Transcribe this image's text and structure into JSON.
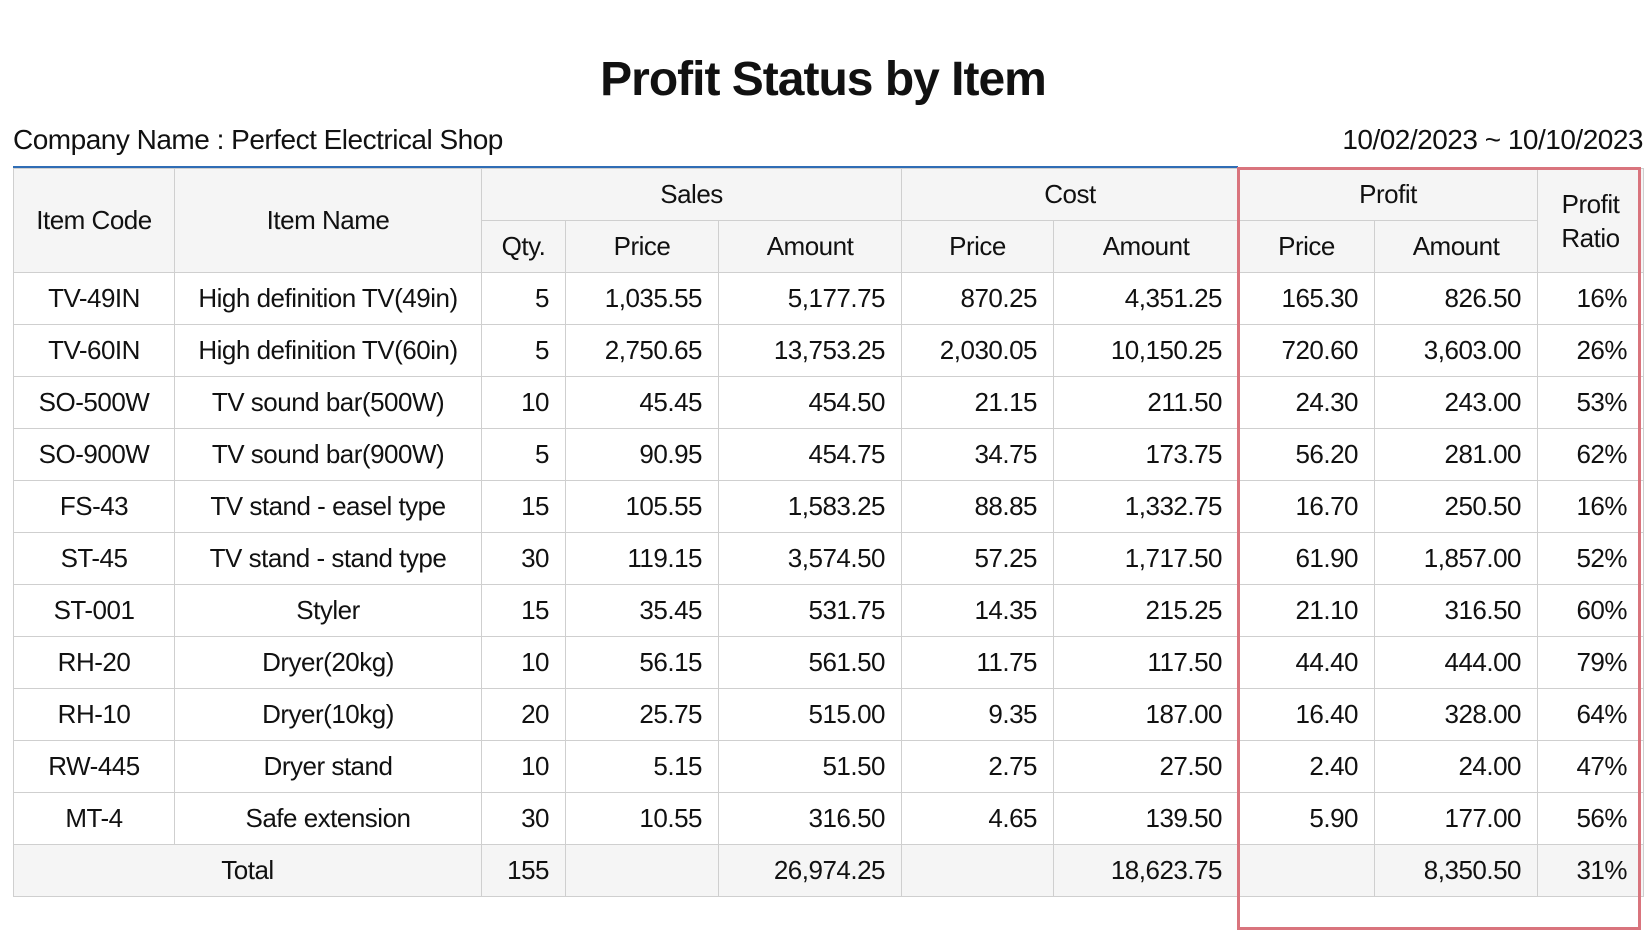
{
  "header": {
    "title": "Profit Status by Item",
    "company": "Company Name : Perfect Electrical Shop",
    "period": "10/02/2023 ~ 10/10/2023"
  },
  "table": {
    "groups": [
      "Item Code",
      "Item Name",
      "Sales",
      "Cost",
      "Profit",
      "Profit Ratio"
    ],
    "subheaders": [
      "Qty.",
      "Price",
      "Amount",
      "Price",
      "Amount",
      "Price",
      "Amount"
    ],
    "rows": [
      [
        "TV-49IN",
        "High definition TV(49in)",
        "5",
        "1,035.55",
        "5,177.75",
        "870.25",
        "4,351.25",
        "165.30",
        "826.50",
        "16%"
      ],
      [
        "TV-60IN",
        "High definition TV(60in)",
        "5",
        "2,750.65",
        "13,753.25",
        "2,030.05",
        "10,150.25",
        "720.60",
        "3,603.00",
        "26%"
      ],
      [
        "SO-500W",
        "TV sound bar(500W)",
        "10",
        "45.45",
        "454.50",
        "21.15",
        "211.50",
        "24.30",
        "243.00",
        "53%"
      ],
      [
        "SO-900W",
        "TV sound bar(900W)",
        "5",
        "90.95",
        "454.75",
        "34.75",
        "173.75",
        "56.20",
        "281.00",
        "62%"
      ],
      [
        "FS-43",
        "TV stand - easel type",
        "15",
        "105.55",
        "1,583.25",
        "88.85",
        "1,332.75",
        "16.70",
        "250.50",
        "16%"
      ],
      [
        "ST-45",
        "TV stand - stand type",
        "30",
        "119.15",
        "3,574.50",
        "57.25",
        "1,717.50",
        "61.90",
        "1,857.00",
        "52%"
      ],
      [
        "ST-001",
        "Styler",
        "15",
        "35.45",
        "531.75",
        "14.35",
        "215.25",
        "21.10",
        "316.50",
        "60%"
      ],
      [
        "RH-20",
        "Dryer(20kg)",
        "10",
        "56.15",
        "561.50",
        "11.75",
        "117.50",
        "44.40",
        "444.00",
        "79%"
      ],
      [
        "RH-10",
        "Dryer(10kg)",
        "20",
        "25.75",
        "515.00",
        "9.35",
        "187.00",
        "16.40",
        "328.00",
        "64%"
      ],
      [
        "RW-445",
        "Dryer stand",
        "10",
        "5.15",
        "51.50",
        "2.75",
        "27.50",
        "2.40",
        "24.00",
        "47%"
      ],
      [
        "MT-4",
        "Safe extension",
        "30",
        "10.55",
        "316.50",
        "4.65",
        "139.50",
        "5.90",
        "177.00",
        "56%"
      ]
    ],
    "total": {
      "label": "Total",
      "qty": "155",
      "sales_amount": "26,974.25",
      "cost_amount": "18,623.75",
      "profit_amount": "8,350.50",
      "ratio": "31%"
    }
  }
}
